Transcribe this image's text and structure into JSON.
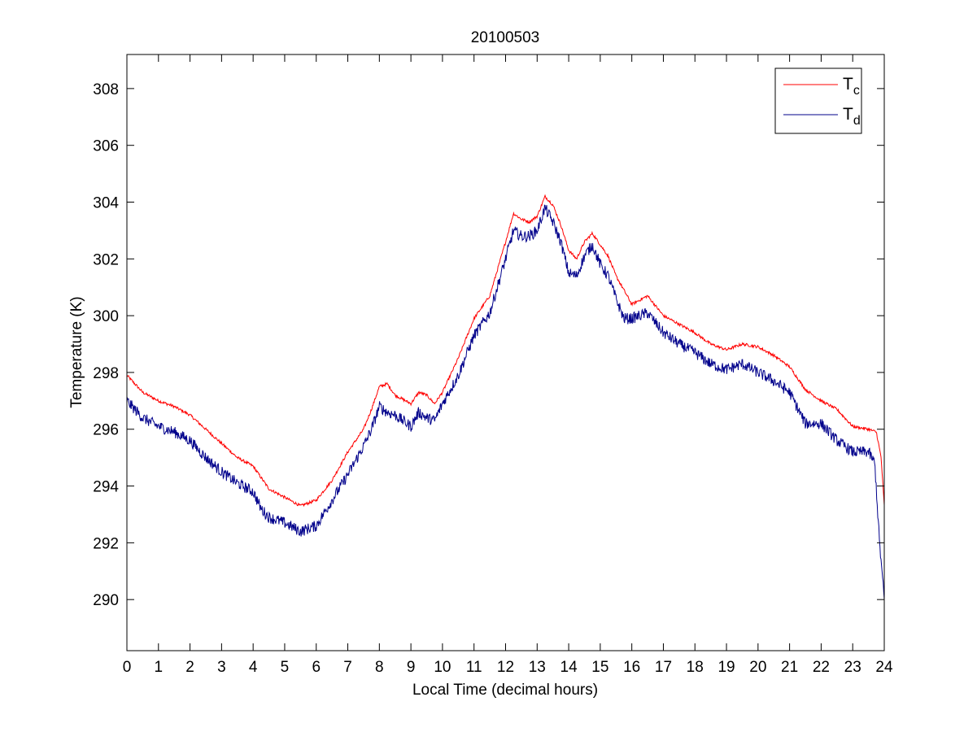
{
  "chart_data": {
    "type": "line",
    "title": "20100503",
    "xlabel": "Local Time (decimal hours)",
    "ylabel": "Temperature (K)",
    "xlim": [
      0,
      24
    ],
    "ylim": [
      288.2,
      309.2
    ],
    "xticks": [
      0,
      1,
      2,
      3,
      4,
      5,
      6,
      7,
      8,
      9,
      10,
      11,
      12,
      13,
      14,
      15,
      16,
      17,
      18,
      19,
      20,
      21,
      22,
      23,
      24
    ],
    "yticks": [
      290,
      292,
      294,
      296,
      298,
      300,
      302,
      304,
      306,
      308
    ],
    "grid": false,
    "legend_position": "top-right",
    "series": [
      {
        "name": "Tc",
        "name_main": "T",
        "name_sub": "c",
        "color": "#ff0000",
        "noise": 0.05,
        "x": [
          0,
          0.5,
          1,
          1.5,
          2,
          2.5,
          3,
          3.5,
          4,
          4.25,
          4.5,
          5,
          5.5,
          6,
          6.5,
          7,
          7.5,
          7.75,
          8,
          8.25,
          8.5,
          9,
          9.25,
          9.5,
          9.75,
          10,
          10.5,
          11,
          11.5,
          12,
          12.25,
          12.5,
          12.75,
          13,
          13.25,
          13.5,
          13.75,
          14,
          14.25,
          14.5,
          14.75,
          15,
          15.25,
          15.5,
          15.75,
          16,
          16.5,
          17,
          17.5,
          18,
          18.5,
          19,
          19.5,
          20,
          20.5,
          21,
          21.5,
          22,
          22.5,
          23,
          23.5,
          23.75,
          23.9,
          24
        ],
        "y": [
          297.9,
          297.3,
          297.0,
          296.8,
          296.5,
          296.0,
          295.5,
          295.0,
          294.7,
          294.3,
          293.9,
          293.6,
          293.3,
          293.5,
          294.2,
          295.2,
          296.0,
          296.7,
          297.5,
          297.6,
          297.2,
          296.9,
          297.3,
          297.2,
          296.9,
          297.3,
          298.5,
          299.9,
          300.7,
          302.6,
          303.6,
          303.4,
          303.3,
          303.5,
          304.2,
          303.9,
          303.2,
          302.3,
          302.0,
          302.6,
          302.9,
          302.5,
          302.1,
          301.4,
          300.9,
          300.4,
          300.7,
          300.0,
          299.7,
          299.4,
          299.0,
          298.8,
          299.0,
          298.9,
          298.6,
          298.2,
          297.4,
          297.0,
          296.7,
          296.1,
          296.0,
          295.9,
          295.0,
          293.3
        ]
      },
      {
        "name": "Td",
        "name_main": "T",
        "name_sub": "d",
        "color": "#00008b",
        "noise": 0.2,
        "x": [
          0,
          0.5,
          1,
          1.5,
          2,
          2.5,
          3,
          3.5,
          4,
          4.25,
          4.5,
          5,
          5.5,
          6,
          6.5,
          7,
          7.5,
          7.75,
          8,
          8.25,
          8.5,
          9,
          9.25,
          9.5,
          9.75,
          10,
          10.5,
          11,
          11.5,
          12,
          12.25,
          12.5,
          12.75,
          13,
          13.25,
          13.5,
          13.75,
          14,
          14.25,
          14.5,
          14.75,
          15,
          15.25,
          15.5,
          15.75,
          16,
          16.5,
          17,
          17.5,
          18,
          18.5,
          19,
          19.5,
          20,
          20.5,
          21,
          21.5,
          22,
          22.5,
          23,
          23.5,
          23.7,
          23.85,
          24
        ],
        "y": [
          297.0,
          296.4,
          296.1,
          295.9,
          295.6,
          295.0,
          294.5,
          294.1,
          293.8,
          293.2,
          292.9,
          292.7,
          292.4,
          292.6,
          293.5,
          294.4,
          295.4,
          296.0,
          296.8,
          296.6,
          296.5,
          296.1,
          296.6,
          296.4,
          296.3,
          296.9,
          297.9,
          299.3,
          300.1,
          302.0,
          303.0,
          302.8,
          302.8,
          303.0,
          303.8,
          303.3,
          302.6,
          301.5,
          301.4,
          302.1,
          302.5,
          301.8,
          301.4,
          300.6,
          299.9,
          299.9,
          300.1,
          299.4,
          299.0,
          298.7,
          298.3,
          298.1,
          298.3,
          298.0,
          297.7,
          297.3,
          296.2,
          296.2,
          295.6,
          295.2,
          295.2,
          294.8,
          292.0,
          290.0
        ]
      }
    ]
  }
}
